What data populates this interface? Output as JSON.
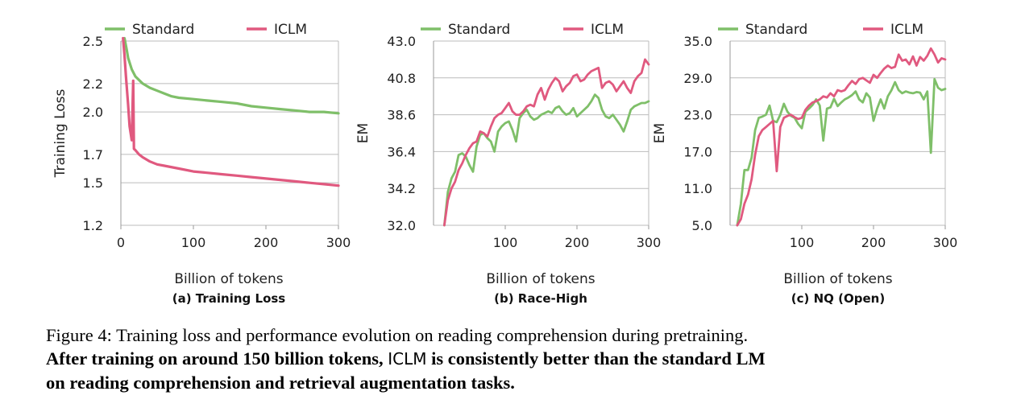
{
  "colors": {
    "standard": "#7fbf69",
    "iclm": "#e0597f",
    "grid": "#bbbbbb",
    "axis": "#999999"
  },
  "chart_data": [
    {
      "type": "line",
      "subcaption": "(a) Training Loss",
      "xlabel": "Billion of tokens",
      "ylabel": "Training Loss",
      "xlim": [
        0,
        300
      ],
      "ylim": [
        1.2,
        2.5
      ],
      "xticks": [
        0,
        100,
        200,
        300
      ],
      "yticks": [
        "1.2",
        "1.5",
        "1.7",
        "2.0",
        "2.2",
        "2.5"
      ],
      "ytick_values": [
        1.2,
        1.5,
        1.7,
        2.0,
        2.2,
        2.5
      ],
      "grid": true,
      "legend": "top",
      "series": [
        {
          "name": "Standard",
          "x": [
            5,
            8,
            10,
            15,
            20,
            30,
            40,
            50,
            60,
            70,
            80,
            100,
            120,
            140,
            160,
            180,
            200,
            220,
            240,
            260,
            280,
            300
          ],
          "y": [
            2.52,
            2.44,
            2.38,
            2.3,
            2.25,
            2.2,
            2.17,
            2.15,
            2.13,
            2.11,
            2.1,
            2.09,
            2.08,
            2.07,
            2.06,
            2.04,
            2.03,
            2.02,
            2.01,
            2.0,
            2.0,
            1.99
          ]
        },
        {
          "name": "ICLM",
          "x": [
            3,
            5,
            7,
            10,
            12,
            15,
            17,
            18,
            20,
            25,
            30,
            40,
            50,
            60,
            80,
            100,
            120,
            140,
            160,
            180,
            200,
            220,
            240,
            260,
            280,
            300
          ],
          "y": [
            2.52,
            2.4,
            2.25,
            2.05,
            1.9,
            1.8,
            2.22,
            1.74,
            1.73,
            1.7,
            1.68,
            1.65,
            1.63,
            1.62,
            1.6,
            1.58,
            1.57,
            1.56,
            1.55,
            1.54,
            1.53,
            1.52,
            1.51,
            1.5,
            1.49,
            1.48
          ]
        }
      ]
    },
    {
      "type": "line",
      "subcaption": "(b) Race-High",
      "xlabel": "Billion of tokens",
      "ylabel": "EM",
      "xlim": [
        0,
        300
      ],
      "ylim": [
        32.0,
        43.0
      ],
      "xticks": [
        100,
        200,
        300
      ],
      "yticks": [
        "32.0",
        "34.2",
        "36.4",
        "38.6",
        "40.8",
        "43.0"
      ],
      "ytick_values": [
        32.0,
        34.2,
        36.4,
        38.6,
        40.8,
        43.0
      ],
      "grid": true,
      "legend": "top",
      "series": [
        {
          "name": "Standard",
          "x": [
            15,
            20,
            25,
            30,
            35,
            40,
            45,
            50,
            55,
            60,
            65,
            70,
            75,
            80,
            85,
            90,
            95,
            100,
            105,
            110,
            115,
            120,
            125,
            130,
            135,
            140,
            145,
            150,
            155,
            160,
            165,
            170,
            175,
            180,
            185,
            190,
            195,
            200,
            205,
            210,
            215,
            220,
            225,
            230,
            235,
            240,
            245,
            250,
            255,
            260,
            265,
            270,
            275,
            280,
            285,
            290,
            295,
            300
          ],
          "y": [
            32.0,
            34.0,
            34.8,
            35.2,
            36.2,
            36.3,
            36.1,
            35.6,
            35.2,
            36.7,
            37.4,
            37.5,
            37.2,
            37.0,
            36.4,
            37.6,
            37.9,
            38.1,
            38.2,
            37.7,
            37.0,
            38.4,
            38.7,
            38.9,
            38.5,
            38.3,
            38.4,
            38.6,
            38.7,
            38.8,
            38.7,
            39.0,
            39.1,
            38.8,
            38.6,
            38.7,
            39.0,
            38.5,
            38.7,
            38.9,
            39.1,
            39.4,
            39.8,
            39.6,
            38.9,
            38.5,
            38.4,
            38.6,
            38.3,
            38.0,
            37.6,
            38.2,
            38.9,
            39.1,
            39.2,
            39.3,
            39.3,
            39.4
          ]
        },
        {
          "name": "ICLM",
          "x": [
            15,
            20,
            25,
            30,
            35,
            40,
            45,
            50,
            55,
            60,
            65,
            70,
            75,
            80,
            85,
            90,
            95,
            100,
            105,
            110,
            115,
            120,
            125,
            130,
            135,
            140,
            145,
            150,
            155,
            160,
            165,
            170,
            175,
            180,
            185,
            190,
            195,
            200,
            205,
            210,
            215,
            220,
            225,
            230,
            235,
            240,
            245,
            250,
            255,
            260,
            265,
            270,
            275,
            280,
            285,
            290,
            295,
            300
          ],
          "y": [
            32.0,
            33.5,
            34.2,
            34.6,
            35.3,
            35.7,
            36.2,
            36.6,
            36.9,
            37.0,
            37.6,
            37.5,
            37.3,
            37.9,
            38.4,
            38.6,
            38.7,
            39.0,
            39.3,
            38.8,
            38.6,
            38.6,
            38.8,
            39.1,
            39.2,
            39.1,
            39.8,
            40.2,
            39.5,
            40.1,
            40.5,
            40.8,
            40.6,
            40.0,
            40.3,
            40.5,
            40.9,
            41.0,
            40.6,
            40.7,
            41.0,
            41.2,
            41.3,
            41.4,
            40.2,
            40.5,
            40.6,
            40.4,
            40.0,
            40.3,
            40.6,
            40.2,
            39.9,
            40.6,
            40.9,
            41.1,
            41.9,
            41.6
          ]
        }
      ]
    },
    {
      "type": "line",
      "subcaption": "(c) NQ (Open)",
      "xlabel": "Billion of tokens",
      "ylabel": "EM",
      "xlim": [
        0,
        300
      ],
      "ylim": [
        5.0,
        35.0
      ],
      "xticks": [
        100,
        200,
        300
      ],
      "yticks": [
        "5.0",
        "11.0",
        "17.0",
        "23.0",
        "29.0",
        "35.0"
      ],
      "ytick_values": [
        5.0,
        11.0,
        17.0,
        23.0,
        29.0,
        35.0
      ],
      "grid": true,
      "legend": "top",
      "series": [
        {
          "name": "Standard",
          "x": [
            10,
            15,
            20,
            25,
            30,
            35,
            40,
            45,
            50,
            55,
            60,
            65,
            70,
            75,
            80,
            85,
            90,
            95,
            100,
            105,
            110,
            115,
            120,
            125,
            130,
            135,
            140,
            145,
            150,
            155,
            160,
            165,
            170,
            175,
            180,
            185,
            190,
            195,
            200,
            205,
            210,
            215,
            220,
            225,
            230,
            235,
            240,
            245,
            250,
            255,
            260,
            265,
            270,
            275,
            280,
            285,
            290,
            295,
            300
          ],
          "y": [
            5.0,
            8.5,
            14.0,
            14.0,
            16.0,
            20.5,
            22.5,
            22.7,
            23.0,
            24.5,
            22.0,
            21.8,
            23.0,
            24.8,
            23.5,
            22.8,
            22.5,
            21.5,
            20.8,
            23.5,
            24.0,
            24.6,
            25.5,
            24.5,
            18.8,
            24.0,
            24.2,
            25.6,
            24.4,
            25.0,
            25.5,
            25.8,
            26.2,
            26.8,
            25.5,
            25.0,
            26.5,
            25.8,
            22.0,
            24.0,
            25.5,
            24.0,
            26.0,
            27.0,
            28.3,
            27.0,
            26.5,
            26.8,
            26.6,
            26.5,
            26.7,
            26.6,
            25.5,
            26.8,
            16.8,
            28.8,
            27.4,
            27.0,
            27.2
          ]
        },
        {
          "name": "ICLM",
          "x": [
            10,
            15,
            20,
            25,
            30,
            35,
            40,
            45,
            50,
            55,
            60,
            65,
            70,
            75,
            80,
            85,
            90,
            95,
            100,
            105,
            110,
            115,
            120,
            125,
            130,
            135,
            140,
            145,
            150,
            155,
            160,
            165,
            170,
            175,
            180,
            185,
            190,
            195,
            200,
            205,
            210,
            215,
            220,
            225,
            230,
            235,
            240,
            245,
            250,
            255,
            260,
            265,
            270,
            275,
            280,
            285,
            290,
            295,
            300
          ],
          "y": [
            5.0,
            6.0,
            8.5,
            10.0,
            12.5,
            16.5,
            19.5,
            20.5,
            21.0,
            21.5,
            22.0,
            13.8,
            21.0,
            22.5,
            22.8,
            23.0,
            22.6,
            22.3,
            22.5,
            23.8,
            24.5,
            25.0,
            25.2,
            25.5,
            26.0,
            25.8,
            26.5,
            26.0,
            27.0,
            26.8,
            27.0,
            27.8,
            28.5,
            28.0,
            28.8,
            29.0,
            28.6,
            28.2,
            29.5,
            29.0,
            29.8,
            30.5,
            31.0,
            30.6,
            30.8,
            32.8,
            31.8,
            32.0,
            31.2,
            32.5,
            31.0,
            32.4,
            31.8,
            32.6,
            33.8,
            32.8,
            31.5,
            32.2,
            32.0
          ]
        }
      ]
    }
  ],
  "caption": {
    "line1": "Figure 4: Training loss and performance evolution on reading comprehension during pretraining.",
    "line2_bold_a": "After training on around 150 billion tokens,",
    "line2_sans": "ICLM",
    "line2_bold_b": "is consistently better than the standard LM",
    "line3_bold": "on reading comprehension and retrieval augmentation tasks."
  }
}
